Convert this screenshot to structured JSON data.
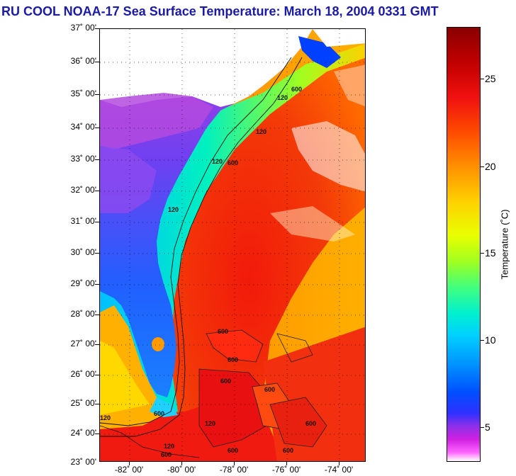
{
  "title": "RU COOL  NOAA-17  Sea Surface Temperature:  March 18, 2004 0331 GMT",
  "map": {
    "lat_labels": [
      "37˚ 00'",
      "36˚ 00'",
      "35˚ 00'",
      "34˚ 00'",
      "33˚ 00'",
      "32˚ 00'",
      "31˚ 00'",
      "30˚ 00'",
      "29˚ 00'",
      "28˚ 00'",
      "27˚ 00'",
      "26˚ 00'",
      "25˚ 00'",
      "24˚ 00'",
      "23˚ 00'"
    ],
    "lon_labels": [
      "-82˚ 00'",
      "-80˚ 00'",
      "-78˚ 00'",
      "-76˚ 00'",
      "-74˚ 00'"
    ],
    "contour_labels": [
      "600",
      "120",
      "600",
      "120",
      "600",
      "600",
      "120",
      "120",
      "120",
      "120",
      "600",
      "600",
      "600",
      "600",
      "600",
      "120",
      "600",
      "600"
    ],
    "grid": true
  },
  "colorbar": {
    "title": "Temperature (˚C)",
    "tick_labels": [
      "25",
      "20",
      "15",
      "10",
      "5"
    ],
    "range": [
      3,
      28
    ],
    "colors": [
      "#ff66ff",
      "#9030e8",
      "#0050ff",
      "#00d0ff",
      "#40ff80",
      "#e8ff00",
      "#ff9000",
      "#f01010",
      "#8a0000"
    ]
  }
}
